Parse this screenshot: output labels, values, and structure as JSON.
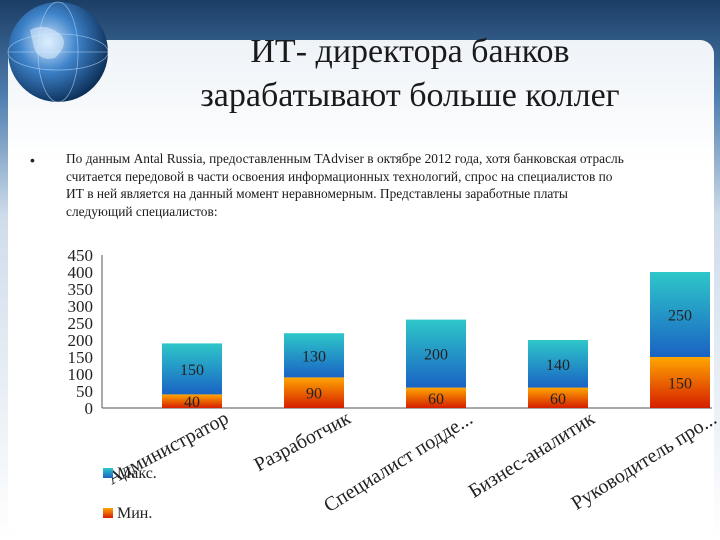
{
  "slide": {
    "title_line1": "ИТ- директора банков",
    "title_line2": "зарабатывают больше коллег",
    "body": "По данным Antal Russia, предоставленным TAdviser в октябре 2012 года, хотя банковская отрасль считается передовой в части освоения информационных технологий, спрос на специалистов по ИТ в ней является на данный момент неравномерным.  Представлены заработные платы следующий специалистов:"
  },
  "colors": {
    "max_top": "#2ec7c9",
    "max_bottom": "#1a63c4",
    "min_top": "#ffa600",
    "min_bottom": "#d51e00",
    "background_top": "#1c4876",
    "panel": "#ffffff"
  },
  "chart_data": {
    "type": "bar",
    "stacked": true,
    "categories": [
      "Администратор",
      "Разработчик",
      "Специалист подде...",
      "Бизнес-аналитик",
      "Руководитель про..."
    ],
    "series": [
      {
        "name": "Мин.",
        "values": [
          40,
          90,
          60,
          60,
          150
        ],
        "labels": [
          "40",
          "90",
          "60",
          "60",
          "150"
        ]
      },
      {
        "name": "Макс.",
        "values": [
          150,
          130,
          200,
          140,
          250
        ],
        "labels": [
          "150",
          "130",
          "200",
          "140",
          "250"
        ]
      }
    ],
    "yticks": [
      "0",
      "50",
      "100",
      "150",
      "200",
      "250",
      "300",
      "350",
      "400",
      "450"
    ],
    "ylim": [
      0,
      450
    ],
    "legend": [
      "Макс.",
      "Мин."
    ],
    "legend_position": "bottom-left",
    "grid": false
  }
}
